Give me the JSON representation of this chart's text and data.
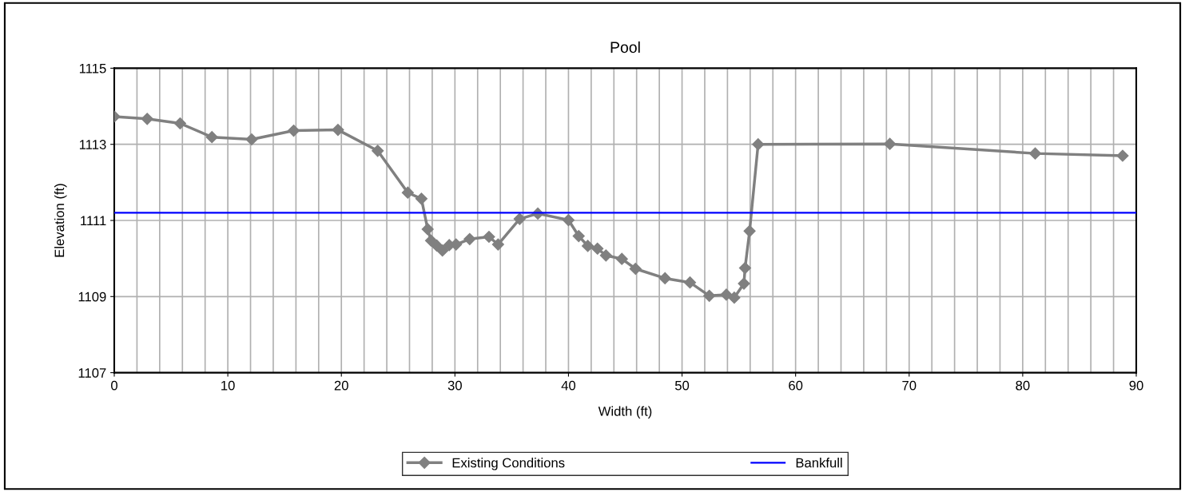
{
  "chart_data": {
    "type": "line",
    "title": "Pool",
    "xlabel": "Width (ft)",
    "ylabel": "Elevation (ft)",
    "series": [
      {
        "name": "Existing Conditions",
        "color": "#808080",
        "marker": "diamond",
        "x": [
          0,
          2.9,
          5.8,
          8.6,
          12.1,
          15.8,
          19.7,
          23.2,
          25.85,
          27.05,
          27.6,
          27.9,
          28.4,
          28.9,
          29.5,
          30.1,
          31.3,
          33.0,
          33.8,
          35.7,
          37.3,
          40.0,
          40.9,
          41.7,
          42.55,
          43.3,
          44.7,
          45.9,
          48.5,
          50.7,
          52.4,
          53.9,
          54.6,
          55.45,
          55.55,
          55.95,
          56.7,
          68.3,
          81.1,
          88.8
        ],
        "values": [
          1113.73,
          1113.67,
          1113.55,
          1113.19,
          1113.13,
          1113.36,
          1113.38,
          1112.83,
          1111.73,
          1111.57,
          1110.77,
          1110.47,
          1110.34,
          1110.21,
          1110.35,
          1110.37,
          1110.51,
          1110.57,
          1110.37,
          1111.04,
          1111.18,
          1111.01,
          1110.59,
          1110.33,
          1110.26,
          1110.08,
          1109.99,
          1109.73,
          1109.48,
          1109.37,
          1109.02,
          1109.05,
          1108.97,
          1109.34,
          1109.75,
          1110.72,
          1113.0,
          1113.01,
          1112.76,
          1112.7
        ]
      },
      {
        "name": "Bankfull",
        "color": "#0000ff",
        "marker": "none",
        "x": [
          0,
          90
        ],
        "values": [
          1111.2,
          1111.2
        ]
      }
    ],
    "xlim": [
      0,
      90
    ],
    "ylim": [
      1107,
      1115
    ],
    "xticks": [
      0,
      {
        "value": 2,
        "label": null
      },
      {
        "value": 4,
        "label": null
      },
      {
        "value": 6,
        "label": null
      },
      {
        "value": 8,
        "label": null
      },
      10,
      {
        "value": 12,
        "label": null
      },
      {
        "value": 14,
        "label": null
      },
      {
        "value": 16,
        "label": null
      },
      {
        "value": 18,
        "label": null
      },
      20,
      {
        "value": 22,
        "label": null
      },
      {
        "value": 24,
        "label": null
      },
      {
        "value": 26,
        "label": null
      },
      {
        "value": 28,
        "label": null
      },
      30,
      {
        "value": 32,
        "label": null
      },
      {
        "value": 34,
        "label": null
      },
      {
        "value": 36,
        "label": null
      },
      {
        "value": 38,
        "label": null
      },
      40,
      {
        "value": 42,
        "label": null
      },
      {
        "value": 44,
        "label": null
      },
      {
        "value": 46,
        "label": null
      },
      {
        "value": 48,
        "label": null
      },
      50,
      {
        "value": 52,
        "label": null
      },
      {
        "value": 54,
        "label": null
      },
      {
        "value": 56,
        "label": null
      },
      {
        "value": 58,
        "label": null
      },
      60,
      {
        "value": 62,
        "label": null
      },
      {
        "value": 64,
        "label": null
      },
      {
        "value": 66,
        "label": null
      },
      {
        "value": 68,
        "label": null
      },
      70,
      {
        "value": 72,
        "label": null
      },
      {
        "value": 74,
        "label": null
      },
      {
        "value": 76,
        "label": null
      },
      {
        "value": 78,
        "label": null
      },
      80,
      {
        "value": 82,
        "label": null
      },
      {
        "value": 84,
        "label": null
      },
      {
        "value": 86,
        "label": null
      },
      {
        "value": 88,
        "label": null
      },
      90
    ],
    "yticks": [
      1107,
      1109,
      1111,
      1113,
      1115
    ],
    "grid": true,
    "legend": "bottom",
    "line_style": "solid"
  }
}
